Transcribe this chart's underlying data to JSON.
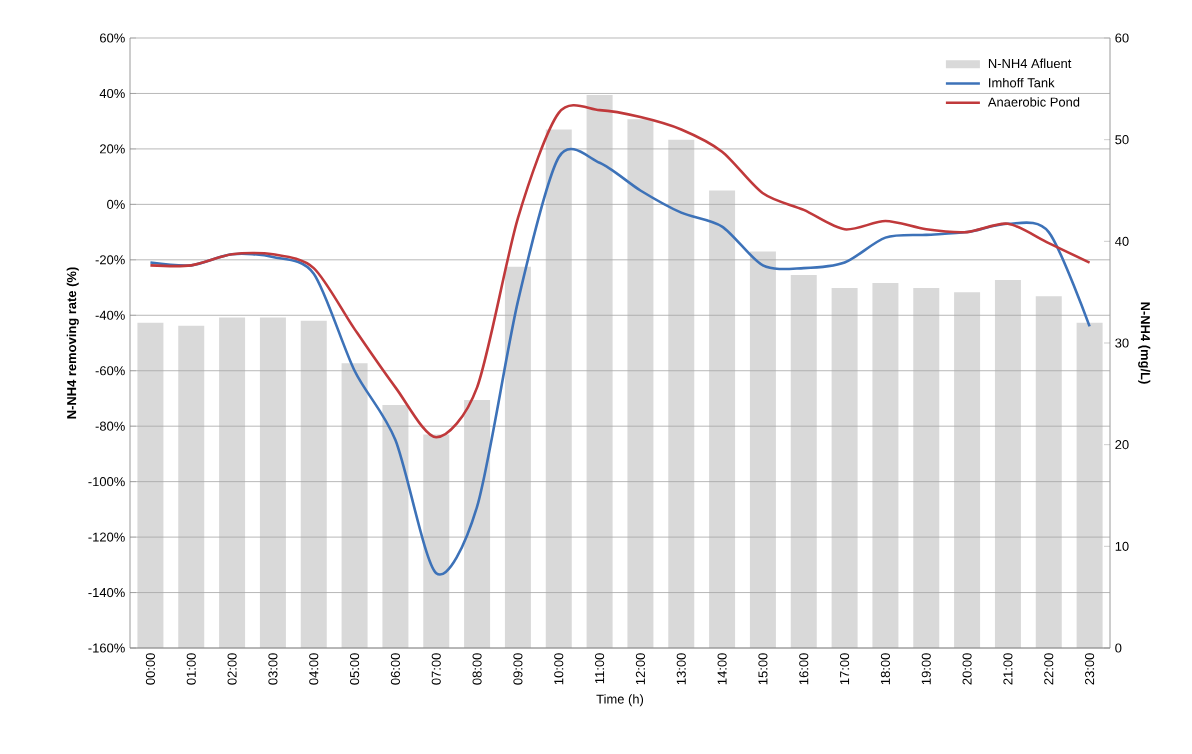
{
  "chart_data": {
    "type": "line",
    "xlabel": "Time (h)",
    "ylabel": "N-NH4  removing rate (%)",
    "y2label": "N-NH4 (mg/L)",
    "categories": [
      "00:00",
      "01:00",
      "02:00",
      "03:00",
      "04:00",
      "05:00",
      "06:00",
      "07:00",
      "08:00",
      "09:00",
      "10:00",
      "11:00",
      "12:00",
      "13:00",
      "14:00",
      "15:00",
      "16:00",
      "17:00",
      "18:00",
      "19:00",
      "20:00",
      "21:00",
      "22:00",
      "23:00"
    ],
    "ylim": [
      -160,
      60
    ],
    "yticks": [
      {
        "value": -160,
        "label": "-160%"
      },
      {
        "value": -140,
        "label": "-140%"
      },
      {
        "value": -120,
        "label": "-120%"
      },
      {
        "value": -100,
        "label": "-100%"
      },
      {
        "value": -80,
        "label": "-80%"
      },
      {
        "value": -60,
        "label": "-60%"
      },
      {
        "value": -40,
        "label": "-40%"
      },
      {
        "value": -20,
        "label": "-20%"
      },
      {
        "value": 0,
        "label": "0%"
      },
      {
        "value": 20,
        "label": "20%"
      },
      {
        "value": 40,
        "label": "40%"
      },
      {
        "value": 60,
        "label": "60%"
      }
    ],
    "y2lim": [
      0,
      60
    ],
    "y2ticks": [
      0,
      10,
      20,
      30,
      40,
      50,
      60
    ],
    "grid": "y",
    "legend": "top right",
    "line_style": "solid",
    "series": [
      {
        "name": "N-NH4 Afluent",
        "type": "bar",
        "axis": "y2",
        "color": "#d9d9d9",
        "values": [
          32,
          31.7,
          32.5,
          32.5,
          32.2,
          28,
          23.9,
          21,
          24.4,
          37.5,
          51,
          54.4,
          52,
          50,
          45,
          39,
          36.7,
          35.4,
          35.9,
          35.4,
          35,
          36.2,
          34.6,
          32
        ]
      },
      {
        "name": "Imhoff Tank",
        "color": "#3d72b8",
        "values": [
          -21,
          -22,
          -18,
          -19,
          -25,
          -60,
          -85,
          -133,
          -109,
          -35,
          17,
          15,
          5,
          -3,
          -8,
          -22,
          -23,
          -21,
          -12,
          -11,
          -10,
          -7,
          -10,
          -44
        ]
      },
      {
        "name": "Anaerobic Pond",
        "color": "#c0393b",
        "values": [
          -22,
          -22,
          -18,
          -18,
          -23,
          -45,
          -66,
          -84,
          -66,
          -5,
          33,
          34,
          31.5,
          27,
          19,
          4,
          -2,
          -9,
          -6,
          -9,
          -10,
          -7,
          -14,
          -21
        ]
      }
    ]
  }
}
